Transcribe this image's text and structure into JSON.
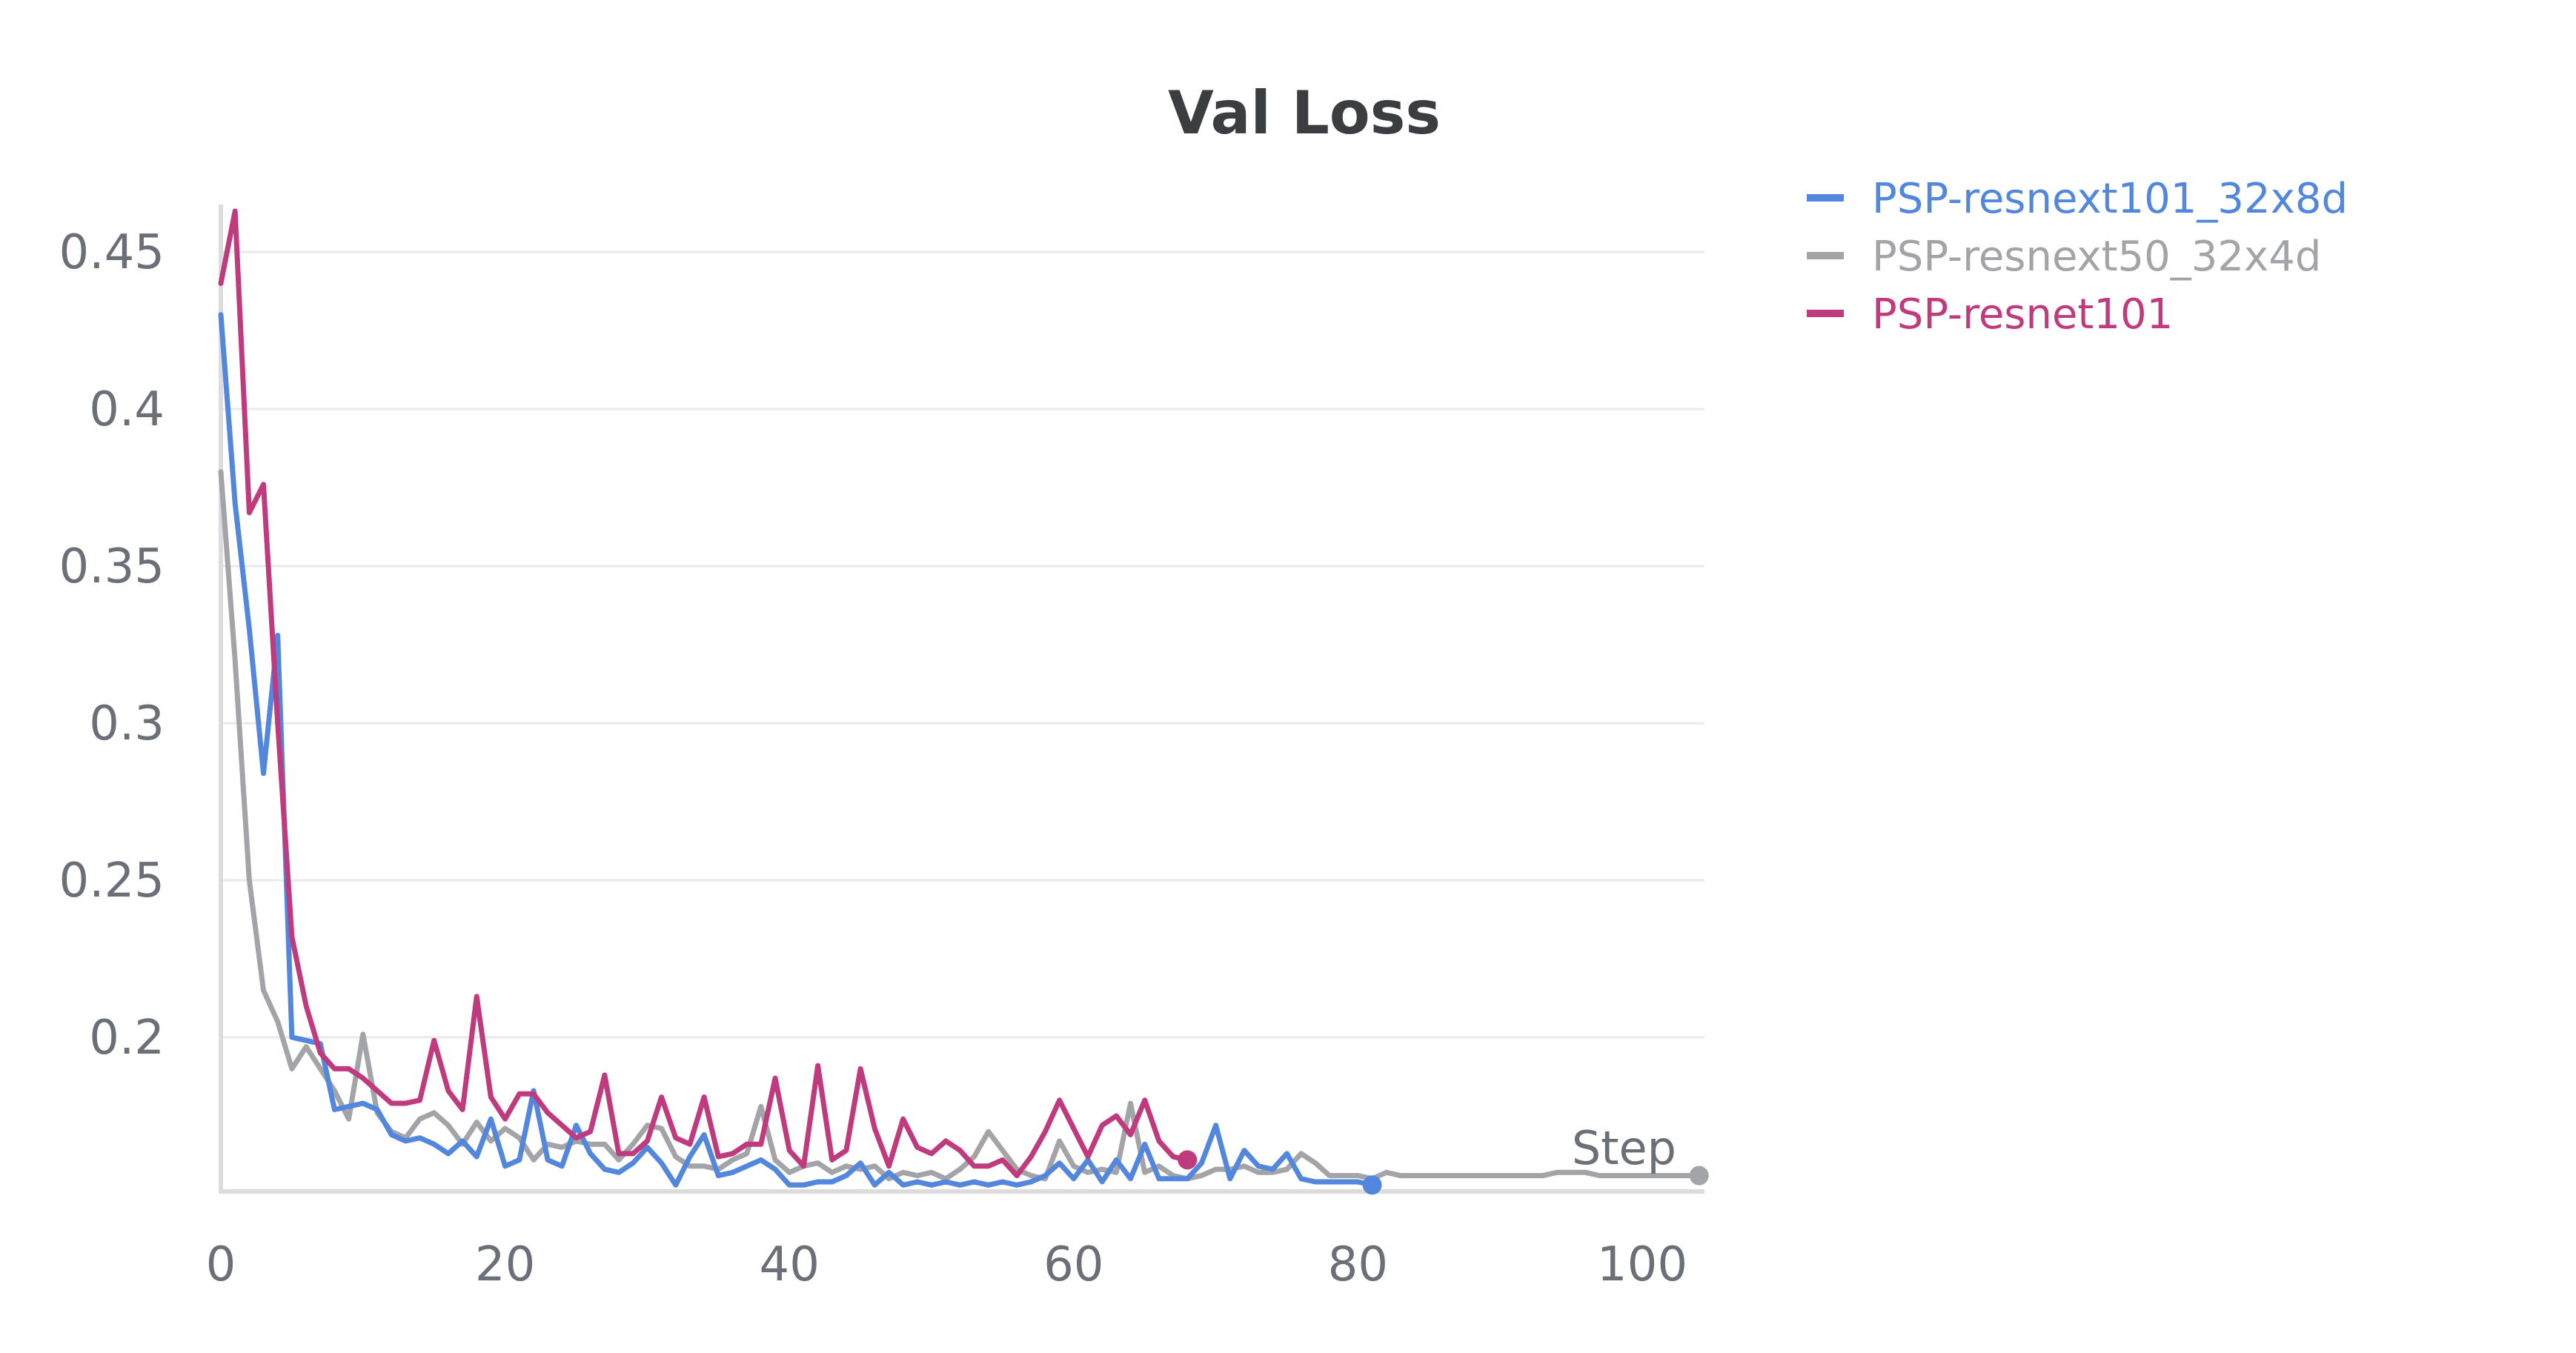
{
  "chart_data": {
    "type": "line",
    "title": "Val Loss",
    "xlabel": "Step",
    "ylabel": "",
    "xlim": [
      0,
      104
    ],
    "ylim": [
      0.152,
      0.465
    ],
    "xticks": [
      0,
      20,
      40,
      60,
      80,
      100
    ],
    "xtick_labels": [
      "0",
      "20",
      "40",
      "60",
      "80",
      "100"
    ],
    "yticks": [
      0.2,
      0.25,
      0.3,
      0.35,
      0.4,
      0.45
    ],
    "ytick_labels": [
      "0.2",
      "0.25",
      "0.3",
      "0.35",
      "0.4",
      "0.45"
    ],
    "grid": true,
    "legend_position": "top-right",
    "series": [
      {
        "name": "PSP-resnext101_32x8d",
        "color": "#5387dd",
        "x": [
          0,
          1,
          2,
          3,
          4,
          5,
          6,
          7,
          8,
          9,
          10,
          11,
          12,
          13,
          14,
          15,
          16,
          17,
          18,
          19,
          20,
          21,
          22,
          23,
          24,
          25,
          26,
          27,
          28,
          29,
          30,
          31,
          32,
          33,
          34,
          35,
          36,
          37,
          38,
          39,
          40,
          41,
          42,
          43,
          44,
          45,
          46,
          47,
          48,
          49,
          50,
          51,
          52,
          53,
          54,
          55,
          56,
          57,
          58,
          59,
          60,
          61,
          62,
          63,
          64,
          65,
          66,
          67,
          68,
          69,
          70,
          71,
          72,
          73,
          74,
          75,
          76,
          77,
          78,
          79,
          80,
          81
        ],
        "y": [
          0.43,
          0.37,
          0.33,
          0.284,
          0.328,
          0.2,
          0.199,
          0.198,
          0.177,
          0.178,
          0.179,
          0.177,
          0.169,
          0.167,
          0.168,
          0.166,
          0.163,
          0.167,
          0.162,
          0.174,
          0.159,
          0.161,
          0.183,
          0.161,
          0.159,
          0.172,
          0.163,
          0.158,
          0.157,
          0.16,
          0.165,
          0.16,
          0.153,
          0.162,
          0.169,
          0.156,
          0.157,
          0.159,
          0.161,
          0.158,
          0.153,
          0.153,
          0.154,
          0.154,
          0.156,
          0.16,
          0.153,
          0.157,
          0.153,
          0.154,
          0.153,
          0.154,
          0.153,
          0.154,
          0.153,
          0.154,
          0.153,
          0.154,
          0.156,
          0.16,
          0.155,
          0.161,
          0.154,
          0.161,
          0.155,
          0.166,
          0.155,
          0.155,
          0.155,
          0.16,
          0.172,
          0.155,
          0.164,
          0.159,
          0.158,
          0.163,
          0.155,
          0.154,
          0.154,
          0.154,
          0.154,
          0.153
        ]
      },
      {
        "name": "PSP-resnext50_32x4d",
        "color": "#a3a4a7",
        "x": [
          0,
          1,
          2,
          3,
          4,
          5,
          6,
          7,
          8,
          9,
          10,
          11,
          12,
          13,
          14,
          15,
          16,
          17,
          18,
          19,
          20,
          21,
          22,
          23,
          24,
          25,
          26,
          27,
          28,
          29,
          30,
          31,
          32,
          33,
          34,
          35,
          36,
          37,
          38,
          39,
          40,
          41,
          42,
          43,
          44,
          45,
          46,
          47,
          48,
          49,
          50,
          51,
          52,
          53,
          54,
          55,
          56,
          57,
          58,
          59,
          60,
          61,
          62,
          63,
          64,
          65,
          66,
          67,
          68,
          69,
          70,
          71,
          72,
          73,
          74,
          75,
          76,
          77,
          78,
          79,
          80,
          81,
          82,
          83,
          84,
          85,
          86,
          87,
          88,
          89,
          90,
          91,
          92,
          93,
          94,
          95,
          96,
          97,
          98,
          99,
          100,
          101,
          102,
          103,
          104
        ],
        "y": [
          0.38,
          0.32,
          0.25,
          0.215,
          0.205,
          0.19,
          0.197,
          0.19,
          0.183,
          0.174,
          0.201,
          0.176,
          0.17,
          0.168,
          0.174,
          0.176,
          0.172,
          0.166,
          0.173,
          0.167,
          0.171,
          0.168,
          0.161,
          0.166,
          0.165,
          0.167,
          0.166,
          0.166,
          0.161,
          0.166,
          0.172,
          0.171,
          0.162,
          0.159,
          0.159,
          0.158,
          0.161,
          0.163,
          0.178,
          0.161,
          0.157,
          0.159,
          0.16,
          0.157,
          0.159,
          0.158,
          0.159,
          0.155,
          0.157,
          0.156,
          0.157,
          0.155,
          0.158,
          0.162,
          0.17,
          0.164,
          0.158,
          0.156,
          0.155,
          0.167,
          0.159,
          0.157,
          0.158,
          0.157,
          0.179,
          0.157,
          0.159,
          0.156,
          0.155,
          0.156,
          0.158,
          0.158,
          0.159,
          0.157,
          0.157,
          0.158,
          0.163,
          0.16,
          0.156,
          0.156,
          0.156,
          0.155,
          0.157,
          0.156,
          0.156,
          0.156,
          0.156,
          0.156,
          0.156,
          0.156,
          0.156,
          0.156,
          0.156,
          0.156,
          0.157,
          0.157,
          0.157,
          0.156,
          0.156,
          0.156,
          0.156,
          0.156,
          0.156,
          0.156,
          0.156
        ]
      },
      {
        "name": "PSP-resnet101",
        "color": "#c03a7e",
        "x": [
          0,
          1,
          2,
          3,
          4,
          5,
          6,
          7,
          8,
          9,
          10,
          11,
          12,
          13,
          14,
          15,
          16,
          17,
          18,
          19,
          20,
          21,
          22,
          23,
          24,
          25,
          26,
          27,
          28,
          29,
          30,
          31,
          32,
          33,
          34,
          35,
          36,
          37,
          38,
          39,
          40,
          41,
          42,
          43,
          44,
          45,
          46,
          47,
          48,
          49,
          50,
          51,
          52,
          53,
          54,
          55,
          56,
          57,
          58,
          59,
          60,
          61,
          62,
          63,
          64,
          65,
          66,
          67,
          68
        ],
        "y": [
          0.44,
          0.463,
          0.367,
          0.376,
          0.3,
          0.232,
          0.21,
          0.195,
          0.19,
          0.19,
          0.187,
          0.183,
          0.179,
          0.179,
          0.18,
          0.199,
          0.183,
          0.177,
          0.213,
          0.181,
          0.174,
          0.182,
          0.182,
          0.176,
          0.172,
          0.168,
          0.17,
          0.188,
          0.163,
          0.163,
          0.167,
          0.181,
          0.168,
          0.166,
          0.181,
          0.162,
          0.163,
          0.166,
          0.166,
          0.187,
          0.164,
          0.159,
          0.191,
          0.161,
          0.164,
          0.19,
          0.171,
          0.159,
          0.174,
          0.165,
          0.163,
          0.167,
          0.164,
          0.159,
          0.159,
          0.161,
          0.156,
          0.162,
          0.17,
          0.18,
          0.171,
          0.162,
          0.172,
          0.175,
          0.169,
          0.18,
          0.167,
          0.162,
          0.161
        ]
      }
    ]
  }
}
